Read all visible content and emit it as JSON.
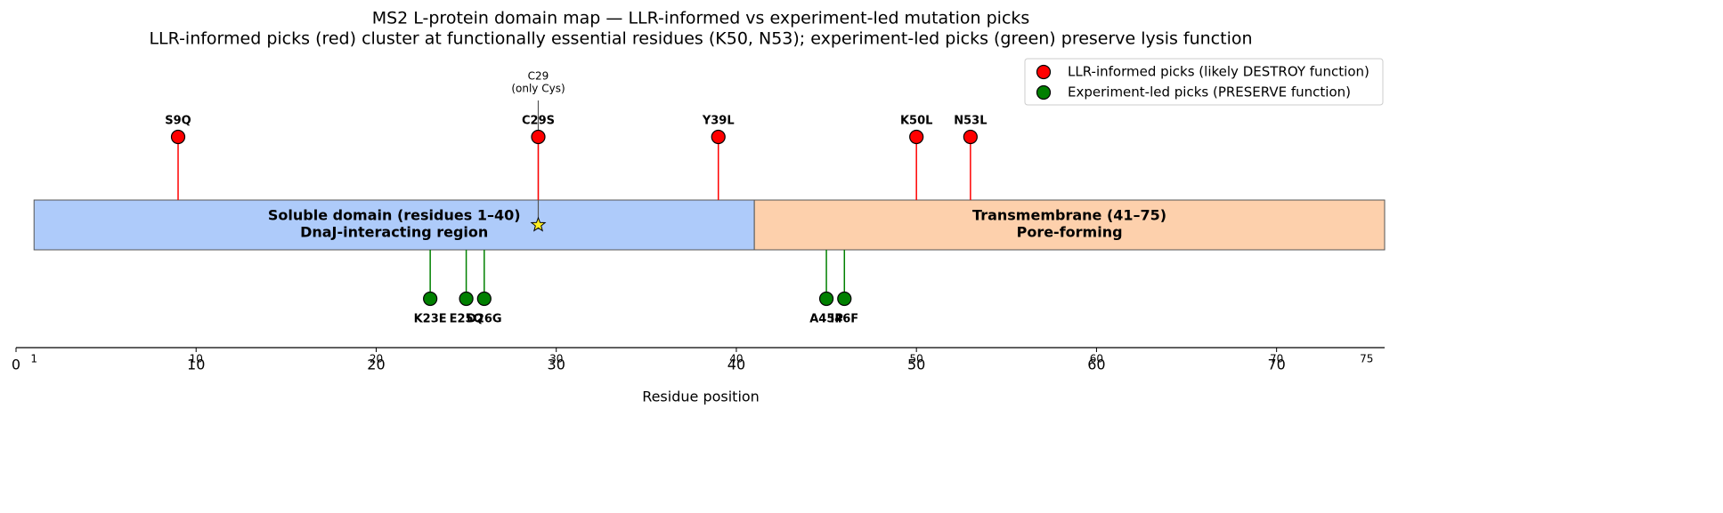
{
  "chart_data": {
    "type": "lollipop",
    "title": "MS2 L-protein domain map — LLR-informed vs experiment-led mutation picks",
    "subtitle": "LLR-informed picks (red) cluster at functionally essential residues (K50, N53); experiment-led picks (green) preserve lysis function",
    "xlabel": "Residue position",
    "xlim": [
      0,
      76
    ],
    "xticks": [
      0,
      10,
      20,
      30,
      40,
      50,
      60,
      70
    ],
    "secondary_xticks": [
      1,
      10,
      20,
      30,
      40,
      50,
      60,
      70,
      75
    ],
    "domains": [
      {
        "lines": [
          "Soluble domain (residues 1–40)",
          "DnaJ-interacting region"
        ],
        "start": 1,
        "end": 40,
        "color": "#aecbfa"
      },
      {
        "lines": [
          "Transmembrane (41–75)",
          "Pore-forming"
        ],
        "start": 41,
        "end": 75,
        "color": "#fdd0ac"
      }
    ],
    "series": [
      {
        "name": "LLR-informed picks (likely DESTROY function)",
        "color": "#ff0000",
        "label_color": "#ee0000",
        "side": "above",
        "values": [
          9,
          29,
          39,
          50,
          53
        ],
        "labels": [
          "S9Q",
          "C29S",
          "Y39L",
          "K50L",
          "N53L"
        ]
      },
      {
        "name": "Experiment-led picks (PRESERVE function)",
        "color": "#008000",
        "label_color": "#008000",
        "side": "below",
        "values": [
          23,
          25,
          26,
          45,
          46
        ],
        "labels": [
          "K23E",
          "E25Q",
          "D26G",
          "A45P",
          "I46F"
        ]
      }
    ],
    "annotation": {
      "lines": [
        "C29",
        "(only Cys)"
      ],
      "x": 29
    },
    "legend": "upper right"
  }
}
